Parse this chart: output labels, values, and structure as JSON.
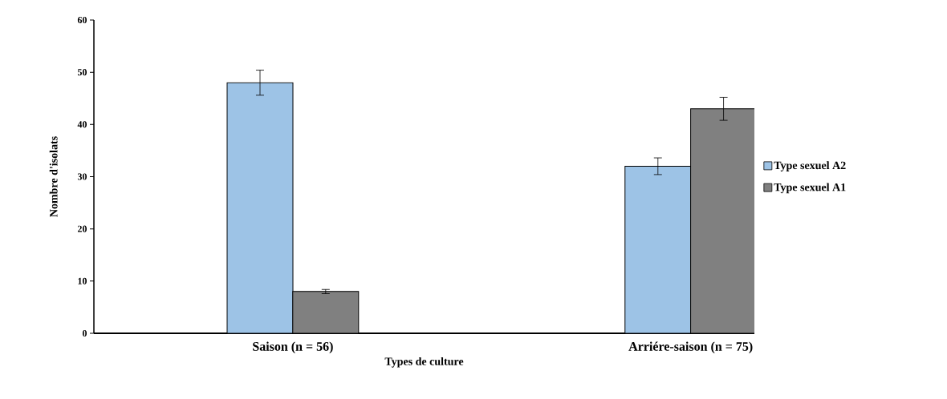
{
  "chart_data": {
    "type": "bar",
    "xlabel": "Types de culture",
    "ylabel": "Nombre d'isolats",
    "categories": [
      "Saison (n = 56)",
      "Arriére-saison (n = 75)"
    ],
    "series": [
      {
        "name": "Type sexuel A2",
        "color": "#9dc3e6",
        "values": [
          48,
          32
        ],
        "errors": [
          2.4,
          1.6
        ]
      },
      {
        "name": "Type sexuel A1",
        "color": "#808080",
        "values": [
          8,
          43
        ],
        "errors": [
          0.4,
          2.2
        ]
      }
    ],
    "ylim": [
      0,
      60
    ],
    "yticks": [
      0,
      10,
      20,
      30,
      40,
      50,
      60
    ],
    "grid": false,
    "legend": "right"
  }
}
